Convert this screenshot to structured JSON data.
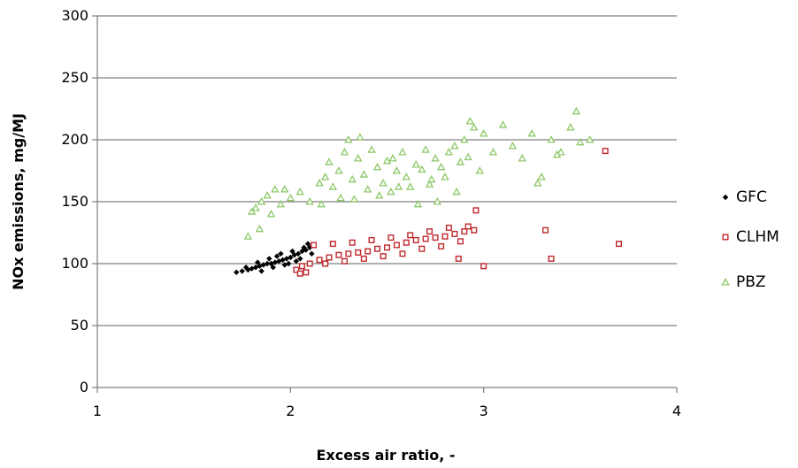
{
  "chart_data": {
    "type": "scatter",
    "title": "",
    "xlabel": "Excess air ratio, -",
    "ylabel": "NOx emissions, mg/MJ",
    "xlim": [
      1,
      4
    ],
    "ylim": [
      0,
      300
    ],
    "x_ticks": [
      "1",
      "2",
      "3",
      "4"
    ],
    "y_ticks": [
      "0",
      "50",
      "100",
      "150",
      "200",
      "250",
      "300"
    ],
    "grid": "horizontal",
    "legend_position": "right",
    "series": [
      {
        "name": "GFC",
        "marker": "diamond",
        "color": "#000000",
        "x": [
          1.72,
          1.75,
          1.78,
          1.8,
          1.82,
          1.84,
          1.86,
          1.88,
          1.9,
          1.92,
          1.94,
          1.96,
          1.98,
          2.0,
          2.02,
          2.04,
          2.06,
          2.08,
          2.1,
          2.12,
          1.77,
          1.83,
          1.89,
          1.95,
          2.01,
          2.07,
          1.85,
          1.91,
          1.97,
          2.03,
          1.93,
          1.99,
          2.05,
          2.09,
          2.11
        ],
        "y": [
          93,
          94,
          95,
          96,
          97,
          98,
          99,
          100,
          100,
          101,
          102,
          103,
          104,
          105,
          107,
          108,
          110,
          111,
          113,
          115,
          97,
          101,
          104,
          108,
          110,
          113,
          94,
          97,
          99,
          102,
          106,
          100,
          104,
          116,
          108
        ]
      },
      {
        "name": "CLHM",
        "marker": "square",
        "color": "#c0282d",
        "x": [
          2.03,
          2.06,
          2.1,
          2.15,
          2.2,
          2.25,
          2.3,
          2.35,
          2.4,
          2.45,
          2.5,
          2.55,
          2.6,
          2.65,
          2.7,
          2.75,
          2.8,
          2.85,
          2.9,
          2.95,
          2.12,
          2.22,
          2.32,
          2.42,
          2.52,
          2.62,
          2.72,
          2.82,
          2.92,
          2.18,
          2.28,
          2.38,
          2.48,
          2.58,
          2.68,
          2.78,
          2.88,
          2.05,
          2.08,
          2.96,
          3.0,
          2.87,
          3.32,
          3.35,
          3.63,
          3.7
        ],
        "y": [
          95,
          98,
          100,
          103,
          105,
          107,
          108,
          109,
          110,
          112,
          113,
          115,
          117,
          119,
          120,
          121,
          122,
          124,
          126,
          127,
          115,
          116,
          117,
          119,
          121,
          123,
          126,
          129,
          130,
          100,
          102,
          104,
          106,
          108,
          112,
          114,
          118,
          92,
          93,
          143,
          98,
          104,
          127,
          104,
          191,
          116
        ]
      },
      {
        "name": "PBZ",
        "marker": "triangle",
        "color": "#8dc868",
        "x": [
          1.78,
          1.8,
          1.82,
          1.85,
          1.88,
          1.9,
          1.92,
          1.95,
          2.0,
          2.05,
          2.1,
          2.15,
          2.18,
          2.2,
          2.22,
          2.25,
          2.28,
          2.3,
          2.32,
          2.35,
          2.38,
          2.4,
          2.42,
          2.45,
          2.48,
          2.5,
          2.52,
          2.55,
          2.58,
          2.6,
          2.62,
          2.65,
          2.68,
          2.7,
          2.72,
          2.75,
          2.78,
          2.8,
          2.82,
          2.85,
          2.88,
          2.9,
          2.92,
          2.95,
          2.98,
          3.0,
          3.05,
          3.1,
          3.15,
          3.2,
          3.25,
          3.3,
          3.35,
          3.4,
          3.45,
          3.48,
          3.5,
          3.55,
          2.36,
          2.46,
          2.56,
          2.66,
          2.76,
          2.86,
          2.26,
          2.16,
          2.33,
          2.53,
          2.73,
          2.93,
          3.28,
          3.38,
          1.84,
          1.97
        ],
        "y": [
          122,
          142,
          145,
          150,
          155,
          140,
          160,
          148,
          153,
          158,
          150,
          165,
          170,
          182,
          162,
          175,
          190,
          200,
          168,
          185,
          172,
          160,
          192,
          178,
          165,
          183,
          158,
          175,
          190,
          170,
          162,
          180,
          176,
          192,
          164,
          185,
          178,
          170,
          190,
          195,
          182,
          200,
          186,
          210,
          175,
          205,
          190,
          212,
          195,
          185,
          205,
          170,
          200,
          190,
          210,
          223,
          198,
          200,
          202,
          155,
          162,
          148,
          150,
          158,
          153,
          148,
          152,
          185,
          168,
          215,
          165,
          188,
          128,
          160
        ]
      }
    ]
  }
}
